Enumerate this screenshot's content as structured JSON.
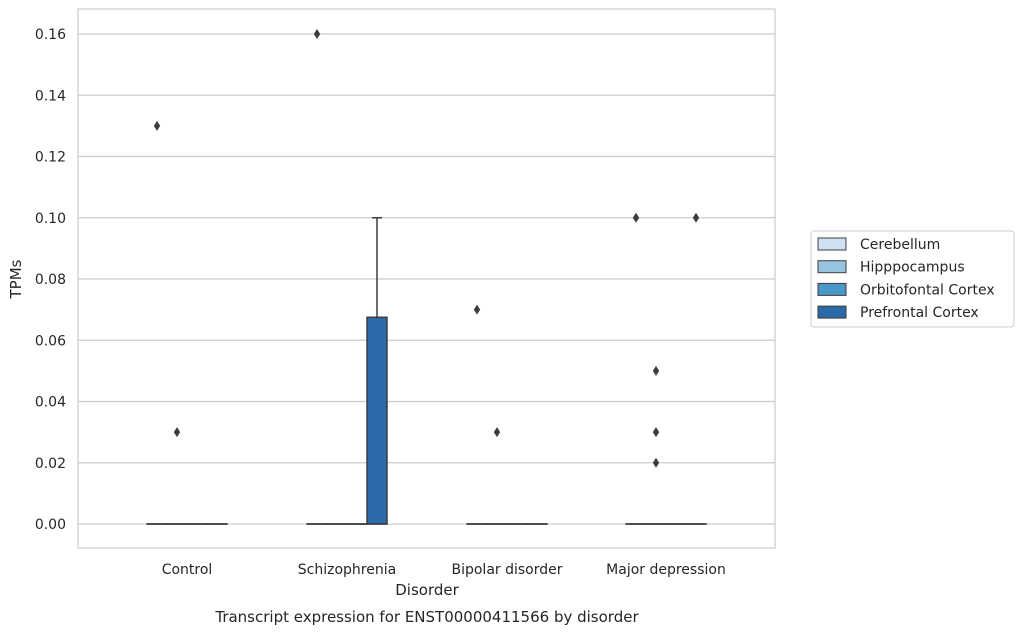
{
  "chart_data": {
    "type": "box",
    "caption": "Transcript expression for ENST00000411566 by disorder",
    "xlabel": "Disorder",
    "ylabel": "TPMs",
    "ylim": [
      -0.008,
      0.168
    ],
    "yticks": [
      "0.00",
      "0.02",
      "0.04",
      "0.06",
      "0.08",
      "0.10",
      "0.12",
      "0.14",
      "0.16"
    ],
    "grid": true,
    "legend_position": "right",
    "categories": [
      "Control",
      "Schizophrenia",
      "Bipolar disorder",
      "Major depression"
    ],
    "series": [
      {
        "name": "Cerebellum",
        "color": "#d0e1f2",
        "boxes": [
          {
            "q1": 0,
            "median": 0,
            "q3": 0,
            "whisker_low": 0,
            "whisker_high": 0,
            "outliers": [
              0.13
            ]
          },
          {
            "q1": 0,
            "median": 0,
            "q3": 0,
            "whisker_low": 0,
            "whisker_high": 0,
            "outliers": [
              0.16
            ]
          },
          {
            "q1": 0,
            "median": 0,
            "q3": 0,
            "whisker_low": 0,
            "whisker_high": 0,
            "outliers": [
              0.07
            ]
          },
          {
            "q1": 0,
            "median": 0,
            "q3": 0,
            "whisker_low": 0,
            "whisker_high": 0,
            "outliers": [
              0.1
            ]
          }
        ]
      },
      {
        "name": "Hipppocampus",
        "color": "#94c4df",
        "boxes": [
          {
            "q1": 0,
            "median": 0,
            "q3": 0,
            "whisker_low": 0,
            "whisker_high": 0,
            "outliers": [
              0.03
            ]
          },
          {
            "q1": 0,
            "median": 0,
            "q3": 0,
            "whisker_low": 0,
            "whisker_high": 0,
            "outliers": []
          },
          {
            "q1": 0,
            "median": 0,
            "q3": 0,
            "whisker_low": 0,
            "whisker_high": 0,
            "outliers": [
              0.03
            ]
          },
          {
            "q1": 0,
            "median": 0,
            "q3": 0,
            "whisker_low": 0,
            "whisker_high": 0,
            "outliers": [
              0.02,
              0.03,
              0.05
            ]
          }
        ]
      },
      {
        "name": "Orbitofontal Cortex",
        "color": "#4a98c9",
        "boxes": [
          {
            "q1": 0,
            "median": 0,
            "q3": 0,
            "whisker_low": 0,
            "whisker_high": 0,
            "outliers": []
          },
          {
            "q1": 0,
            "median": 0,
            "q3": 0,
            "whisker_low": 0,
            "whisker_high": 0,
            "outliers": []
          },
          {
            "q1": 0,
            "median": 0,
            "q3": 0,
            "whisker_low": 0,
            "whisker_high": 0,
            "outliers": []
          },
          {
            "q1": 0,
            "median": 0,
            "q3": 0,
            "whisker_low": 0,
            "whisker_high": 0,
            "outliers": []
          }
        ]
      },
      {
        "name": "Prefrontal Cortex",
        "color": "#2b6aa8",
        "boxes": [
          {
            "q1": 0,
            "median": 0,
            "q3": 0,
            "whisker_low": 0,
            "whisker_high": 0,
            "outliers": []
          },
          {
            "q1": 0,
            "median": 0,
            "q3": 0.0675,
            "whisker_low": 0,
            "whisker_high": 0.1,
            "outliers": []
          },
          {
            "q1": 0,
            "median": 0,
            "q3": 0,
            "whisker_low": 0,
            "whisker_high": 0,
            "outliers": []
          },
          {
            "q1": 0,
            "median": 0,
            "q3": 0,
            "whisker_low": 0,
            "whisker_high": 0,
            "outliers": [
              0.1
            ]
          }
        ]
      }
    ]
  }
}
